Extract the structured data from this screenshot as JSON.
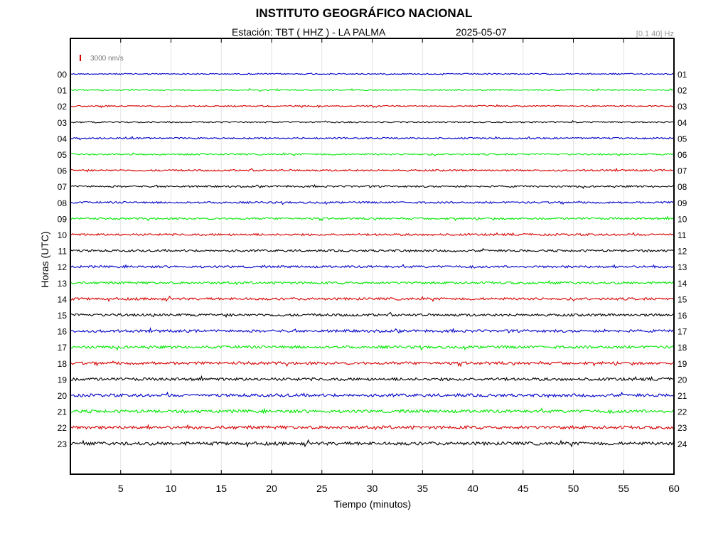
{
  "header": {
    "title": "INSTITUTO GEOGRÁFICO NACIONAL",
    "station_label": "Estación:  TBT ( HHZ ) - LA PALMA",
    "date": "2025-05-07",
    "filter": "[0.1 40] Hz"
  },
  "chart_data": {
    "type": "line",
    "title": "INSTITUTO GEOGRÁFICO NACIONAL",
    "xlabel": "Tiempo (minutos)",
    "ylabel": "Horas (UTC)",
    "xlim": [
      0,
      60
    ],
    "x_ticks": [
      5,
      10,
      15,
      20,
      25,
      30,
      35,
      40,
      45,
      50,
      55,
      60
    ],
    "left_hour_labels": [
      "00",
      "01",
      "02",
      "03",
      "04",
      "05",
      "06",
      "07",
      "08",
      "09",
      "10",
      "11",
      "12",
      "13",
      "14",
      "15",
      "16",
      "17",
      "18",
      "19",
      "20",
      "21",
      "22",
      "23"
    ],
    "right_hour_labels": [
      "01",
      "02",
      "03",
      "04",
      "05",
      "06",
      "07",
      "08",
      "09",
      "10",
      "11",
      "12",
      "13",
      "14",
      "15",
      "16",
      "17",
      "18",
      "19",
      "20",
      "21",
      "22",
      "23",
      "24"
    ],
    "trace_colors": [
      "#0000c8",
      "#00e600",
      "#d70000",
      "#000000"
    ],
    "scale_bar": {
      "label": "3000 nm/s",
      "color": "#d70000"
    },
    "grid": true,
    "grid_axis": "x",
    "legend": "none"
  }
}
